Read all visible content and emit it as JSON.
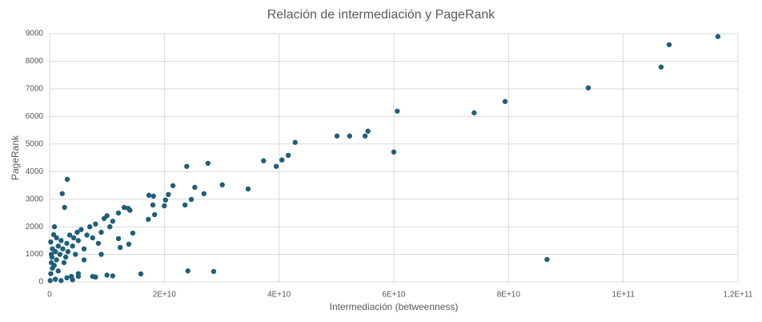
{
  "chart_data": {
    "type": "scatter",
    "title": "Relación de intermediación y PageRank",
    "x_label": "Intermediación (betweenness)",
    "y_label": "PageRank",
    "color": "#1f5f7a",
    "grid": true,
    "xlim": [
      0,
      120000000000
    ],
    "ylim": [
      0,
      9000
    ],
    "xticks": [
      0,
      {
        "value": 20000000000,
        "label": "2E+10"
      },
      {
        "value": 40000000000,
        "label": "4E+10"
      },
      {
        "value": 60000000000,
        "label": "6E+10"
      },
      {
        "value": 80000000000,
        "label": "8E+10"
      },
      {
        "value": 100000000000,
        "label": "1E+11"
      },
      {
        "value": 120000000000,
        "label": "1,2E+11"
      }
    ],
    "yticks": [
      0,
      1000,
      2000,
      3000,
      4000,
      5000,
      6000,
      7000,
      8000,
      9000
    ],
    "x": [
      116500000000.0,
      108000000000.0,
      106600000000.0,
      93900000000.0,
      86700000000.0,
      79400000000.0,
      74000000000.0,
      60600000000.0,
      60000000000.0,
      55500000000.0,
      55000000000.0,
      52300000000.0,
      50100000000.0,
      42800000000.0,
      41600000000.0,
      40500000000.0,
      39500000000.0,
      37300000000.0,
      34600000000.0,
      30100000000.0,
      27600000000.0,
      28600000000.0,
      26900000000.0,
      25300000000.0,
      24700000000.0,
      24100000000.0,
      23900000000.0,
      23600000000.0,
      21500000000.0,
      20700000000.0,
      20200000000.0,
      20000000000.0,
      18300000000.0,
      18100000000.0,
      17300000000.0,
      18000000000.0,
      17200000000.0,
      15900000000.0,
      14500000000.0,
      13800000000.0,
      13700000000.0,
      12300000000.0,
      12000000000.0,
      100000000.0,
      200000000.0,
      300000000.0,
      500000000.0,
      200000000.0,
      400000000.0,
      800000000.0,
      1000000000.0,
      1200000000.0,
      1500000000.0,
      1800000000.0,
      2000000000.0,
      2300000000.0,
      2500000000.0,
      3000000000.0,
      3200000000.0,
      3500000000.0,
      4000000000.0,
      4200000000.0,
      4500000000.0,
      5000000000.0,
      5500000000.0,
      6000000000.0,
      6500000000.0,
      7000000000.0,
      7500000000.0,
      8000000000.0,
      8500000000.0,
      9000000000.0,
      9500000000.0,
      10000000000.0,
      10500000000.0,
      11000000000.0,
      12000000000.0,
      13000000000.0,
      14000000000.0,
      3070000000.0,
      2200000000.0,
      2600000000.0,
      840000000.0,
      700000000.0,
      1000000000.0,
      2000000000.0,
      3000000000.0,
      4000000000.0,
      5000000000.0,
      7500000000.0,
      8000000000.0,
      10000000000.0,
      11000000000.0,
      9000000000.0,
      5000000000.0,
      3800000000.0,
      500000000.0,
      1500000000.0,
      2800000000.0,
      6000000000.0,
      1200000000.0,
      300000000.0,
      4800000000.0
    ],
    "values": [
      8895,
      8600,
      7790,
      7035,
      814,
      6540,
      6130,
      6190,
      4710,
      5465,
      5290,
      5290,
      5290,
      5060,
      4590,
      4420,
      4190,
      4390,
      3370,
      3520,
      4300,
      380,
      3200,
      3430,
      2990,
      400,
      4190,
      2790,
      3490,
      3170,
      2970,
      2760,
      2440,
      3110,
      3140,
      2790,
      2270,
      290,
      1770,
      1370,
      2670,
      1250,
      1570,
      50,
      300,
      700,
      1200,
      1450,
      900,
      600,
      1100,
      800,
      1300,
      1000,
      1500,
      1200,
      700,
      1400,
      1100,
      1700,
      1300,
      1600,
      1000,
      1500,
      1900,
      1200,
      1700,
      2000,
      1600,
      2100,
      1400,
      1800,
      2300,
      2400,
      2000,
      2200,
      2500,
      2700,
      2600,
      3720,
      3200,
      2700,
      2000,
      1715,
      100,
      50,
      150,
      80,
      200,
      200,
      180,
      250,
      220,
      1000,
      300,
      200,
      500,
      400,
      900,
      800,
      1600,
      1000,
      1800
    ]
  }
}
